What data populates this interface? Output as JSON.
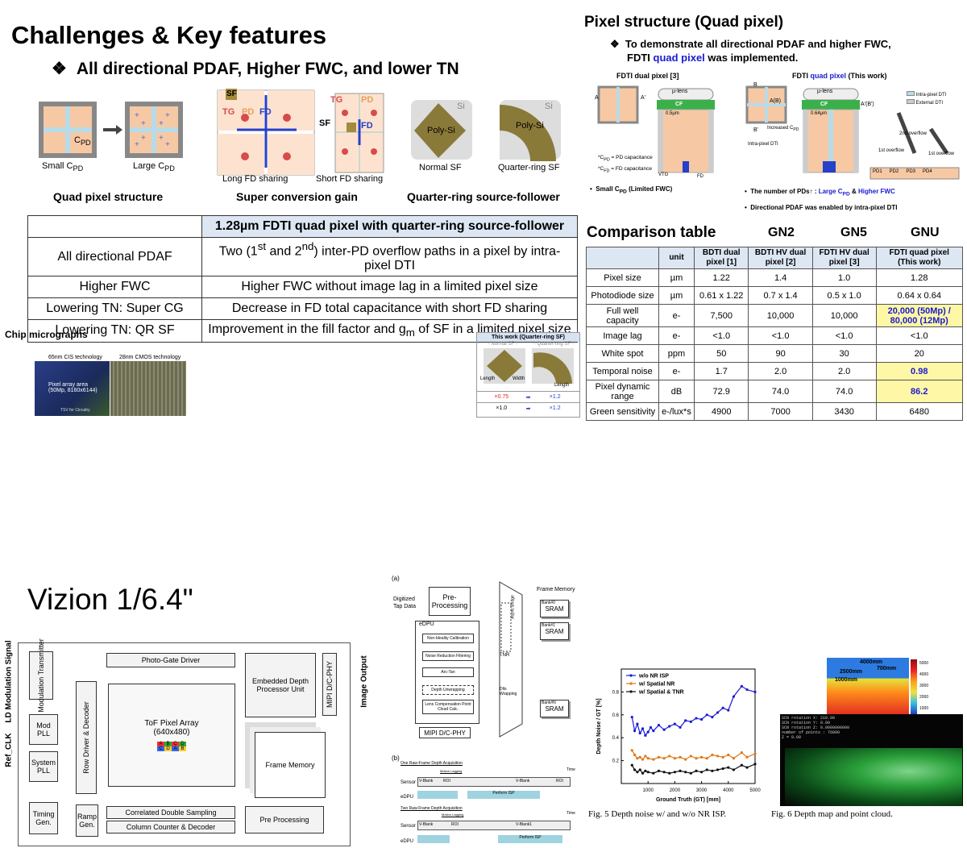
{
  "left": {
    "title": "Challenges & Key features",
    "subtitle_bullet": "❖",
    "subtitle": "All directional PDAF, Higher FWC, and lower TN",
    "figs": {
      "small_cpd": "Small C",
      "small_cpd_sub": "PD",
      "large_cpd": "Large C",
      "large_cpd_sub": "PD",
      "cpd_label": "C",
      "cpd_label_sub": "PD",
      "sf": "SF",
      "tg": "TG",
      "pd": "PD",
      "fd": "FD",
      "long_fd": "Long FD sharing",
      "short_fd": "Short FD sharing",
      "si": "Si",
      "poly_si": "Poly-Si",
      "normal_sf": "Normal SF",
      "qr_sf": "Quarter-ring SF"
    },
    "captions": [
      "Quad pixel structure",
      "Super conversion gain",
      "Quarter-ring source-follower"
    ],
    "feature_table": {
      "header": "1.28µm FDTI quad pixel with quarter-ring source-follower",
      "rows": [
        {
          "label": "All directional PDAF",
          "value_pre": "Two (1",
          "sup1": "st",
          "mid": " and 2",
          "sup2": "nd",
          "value_post": ") inter-PD overflow paths in a pixel by intra-pixel DTI"
        },
        {
          "label": "Higher FWC",
          "value": "Higher FWC without image lag in a limited pixel size"
        },
        {
          "label": "Lowering TN: Super CG",
          "value": "Decrease in FD total capacitance with short FD sharing"
        },
        {
          "label": "Lowering TN: QR SF",
          "value_pre": "Improvement in the fill factor and g",
          "sub": "m",
          "value_post": " of SF in a limited pixel size"
        }
      ]
    },
    "chip": {
      "title": "Chip micrographs",
      "tech1": "65nm CIS technology",
      "tech2": "28nm CMOS technology",
      "array_label": "Pixel array area",
      "array_size": "(50Mp, 8160x6144)",
      "tsv": "TSV for Circuitry"
    },
    "qr_box": {
      "title": "This work (Quarter-ring SF)",
      "col1": "- Normal SF -",
      "col2": "- Quarter-ring SF -",
      "length": "Length",
      "width": "Width",
      "length2": "Length",
      "r1a": "×0.75",
      "r1b": "×1.2",
      "r2a": "×1.0",
      "r2b": "×1.2"
    }
  },
  "right": {
    "title": "Pixel structure (Quad pixel)",
    "bullet": "❖",
    "line1": "To demonstrate all directional PDAF and higher FWC,",
    "line2_pre": "FDTI ",
    "line2_blue": "quad pixel",
    "line2_post": " was implemented.",
    "dual_title": "FDTI dual pixel [3]",
    "quad_title_pre": "FDTI ",
    "quad_title_blue": "quad pixel",
    "quad_title_post": " (This work)",
    "legend": [
      "Intra-pixel DTI",
      "External DTI"
    ],
    "labels": {
      "mulens": "µ-lens",
      "cf": "CF",
      "w1": "0.5µm",
      "w2": "0.64µm",
      "a": "A",
      "ap": "A'",
      "ab": "A(B)",
      "apbp": "A'(B')",
      "b": "B",
      "bp": "B'",
      "cpd_note": "*C",
      "cpd_note_sub": "PD",
      "cpd_note_post": " = PD capacitance",
      "cfd_note": "*C",
      "cfd_note_sub": "FD",
      "cfd_note_post": " = FD capacitance",
      "vtg": "VTG",
      "fd": "FD",
      "increased": "Increased C",
      "increased_sub": "PD",
      "intra_dti": "Intra-pixel DTI",
      "second_overflow": "2nd overflow",
      "first_overflow": "1st overflow",
      "pds": [
        "PD1",
        "PD2",
        "PD3",
        "PD4"
      ]
    },
    "bul_small_pre": "Small C",
    "bul_small_sub": "PD",
    "bul_small_post": " (Limited FWC)",
    "bul_pds_pre": "The number of PDs↑ : ",
    "bul_pds_blue1": "Large C",
    "bul_pds_blue1_sub": "PD",
    "bul_pds_mid": " & ",
    "bul_pds_blue2": "Higher FWC",
    "bul_pdaf": "Directional PDAF was enabled by intra-pixel DTI",
    "comparison": {
      "title": "Comparison table",
      "gen_labels": [
        "GN2",
        "GN5",
        "GNU"
      ],
      "headers": [
        "",
        "unit",
        "BDTI dual pixel [1]",
        "BDTI HV dual pixel [2]",
        "FDTI HV dual pixel [3]",
        "FDTI quad pixel (This work)"
      ],
      "rows": [
        [
          "Pixel size",
          "µm",
          "1.22",
          "1.4",
          "1.0",
          "1.28"
        ],
        [
          "Photodiode size",
          "µm",
          "0.61 x 1.22",
          "0.7 x 1.4",
          "0.5 x 1.0",
          "0.64 x 0.64"
        ],
        [
          "Full well capacity",
          "e-",
          "7,500",
          "10,000",
          "10,000",
          "20,000 (50Mp) / 80,000 (12Mp)"
        ],
        [
          "Image lag",
          "e-",
          "<1.0",
          "<1.0",
          "<1.0",
          "<1.0"
        ],
        [
          "White spot",
          "ppm",
          "50",
          "90",
          "30",
          "20"
        ],
        [
          "Temporal noise",
          "e-",
          "1.7",
          "2.0",
          "2.0",
          "0.98"
        ],
        [
          "Pixel dynamic range",
          "dB",
          "72.9",
          "74.0",
          "74.0",
          "86.2"
        ],
        [
          "Green sensitivity",
          "e-/lux*s",
          "4900",
          "7000",
          "3430",
          "6480"
        ]
      ],
      "highlight_rows": [
        2,
        5,
        6
      ]
    }
  },
  "bottom": {
    "title": "Vizion 1/6.4\"",
    "block": {
      "ld_mod": "LD Modulation Signal",
      "ref_clk": "Ref_CLK",
      "image_output": "Image Output",
      "mod_tx": "Modulation Transmitter",
      "mod_pll": "Mod PLL",
      "sys_pll": "System PLL",
      "timing": "Timing Gen.",
      "photo_gate": "Photo-Gate Driver",
      "row_driver": "Row Driver & Decoder",
      "tof_array": "ToF Pixel Array",
      "tof_res": "(640x480)",
      "edpu": "Embedded Depth Processor Unit",
      "mipi": "MIPI D/C-PHY",
      "frame_mem": "Frame Memory",
      "ramp": "Ramp Gen.",
      "cds": "Correlated Double Sampling",
      "col_counter": "Column Counter & Decoder",
      "pre_proc": "Pre Processing",
      "pix_letters": [
        "A",
        "B",
        "C",
        "D"
      ]
    },
    "flow": {
      "label_a": "(a)",
      "label_b": "(b)",
      "digitized": "Digitized Tap Data",
      "pre": "Pre-Processing",
      "async": "Async Bridge",
      "frame_memory": "Frame Memory",
      "bank0": "Bank#0",
      "bank1": "Bank#1",
      "bankn": "Bank#N",
      "sram": "SRAM",
      "edpu": "eDPU",
      "steps": [
        "Non-Ideality Calibration",
        "Noise Reduction Filtering",
        "Arc-Tan",
        "Depth Unwrapping",
        "Lens Compensation Point Cloud Calc."
      ],
      "tnr": "TNR",
      "unwrap": "Dlts Wrapping",
      "mipi": "MIPI D/C-PHY",
      "one_raw": "One Raw-Frame Depth Acquisition",
      "two_raw": "Two Raw-Frame Depth Acquisition",
      "sensor": "Sensor",
      "edpu_row": "eDPU",
      "time": "Time",
      "vblank": "V-Blank",
      "roi": "ROI",
      "perform_isp": "Perform ISP",
      "motion_lag": "Motion Lagging",
      "vblank1": "V-Blank1"
    },
    "noise_chart": {
      "ylabel": "Depth Noise / GT [%]",
      "xlabel": "Ground Truth (GT) [mm]",
      "caption": "Fig. 5 Depth noise w/ and w/o NR ISP."
    },
    "depth_fig": {
      "caption": "Fig. 6 Depth map and point cloud.",
      "d1": "4000mm",
      "d2": "2500mm",
      "d3": "700mm",
      "d4": "1000mm",
      "scale": [
        "4000",
        "3000",
        "2000",
        "1000",
        "0"
      ],
      "scale_top": "5000",
      "pc_lines": [
        "SCN rotation X: 210.00",
        "SCN rotation Y: 0.00",
        "SCN rotation Z: 0.0000000000",
        "number of points : 76800",
        "Z = 0.00"
      ]
    }
  },
  "chart_data": {
    "type": "line",
    "xlabel": "Ground Truth (GT) [mm]",
    "ylabel": "Depth Noise / GT [%]",
    "xlim": [
      0,
      5000
    ],
    "ylim": [
      0,
      1.0
    ],
    "xticks": [
      1000,
      2000,
      3000,
      4000,
      5000
    ],
    "yticks": [
      0.2,
      0.4,
      0.6,
      0.8
    ],
    "legend_position": "top-left",
    "series": [
      {
        "name": "w/o NR ISP",
        "color": "#1a1ad8",
        "marker": "circle",
        "x": [
          400,
          500,
          600,
          700,
          800,
          900,
          1000,
          1100,
          1200,
          1400,
          1600,
          1800,
          2000,
          2200,
          2400,
          2600,
          2800,
          3000,
          3200,
          3400,
          3600,
          3800,
          4000,
          4200,
          4500,
          4700,
          5000
        ],
        "y": [
          0.58,
          0.46,
          0.52,
          0.44,
          0.48,
          0.42,
          0.45,
          0.49,
          0.46,
          0.51,
          0.47,
          0.5,
          0.52,
          0.49,
          0.55,
          0.54,
          0.57,
          0.56,
          0.6,
          0.58,
          0.62,
          0.66,
          0.64,
          0.76,
          0.85,
          0.82,
          0.8
        ]
      },
      {
        "name": "w/ Spatial NR",
        "color": "#e07818",
        "marker": "circle",
        "x": [
          400,
          500,
          600,
          700,
          800,
          900,
          1000,
          1200,
          1400,
          1600,
          1800,
          2000,
          2200,
          2400,
          2600,
          2800,
          3000,
          3200,
          3400,
          3600,
          3800,
          4000,
          4200,
          4500,
          4700,
          5000
        ],
        "y": [
          0.29,
          0.25,
          0.22,
          0.23,
          0.21,
          0.24,
          0.22,
          0.21,
          0.23,
          0.22,
          0.24,
          0.22,
          0.23,
          0.21,
          0.24,
          0.22,
          0.23,
          0.22,
          0.25,
          0.24,
          0.23,
          0.25,
          0.22,
          0.27,
          0.23,
          0.26
        ]
      },
      {
        "name": "w/ Spatial & TNR",
        "color": "#111111",
        "marker": "circle",
        "x": [
          400,
          500,
          600,
          700,
          800,
          900,
          1000,
          1200,
          1400,
          1600,
          1800,
          2000,
          2200,
          2400,
          2600,
          2800,
          3000,
          3200,
          3400,
          3600,
          3800,
          4000,
          4200,
          4500,
          4700,
          5000
        ],
        "y": [
          0.16,
          0.12,
          0.1,
          0.12,
          0.09,
          0.11,
          0.1,
          0.09,
          0.11,
          0.1,
          0.09,
          0.1,
          0.11,
          0.1,
          0.09,
          0.11,
          0.1,
          0.12,
          0.11,
          0.12,
          0.13,
          0.14,
          0.12,
          0.16,
          0.14,
          0.17
        ]
      }
    ]
  }
}
